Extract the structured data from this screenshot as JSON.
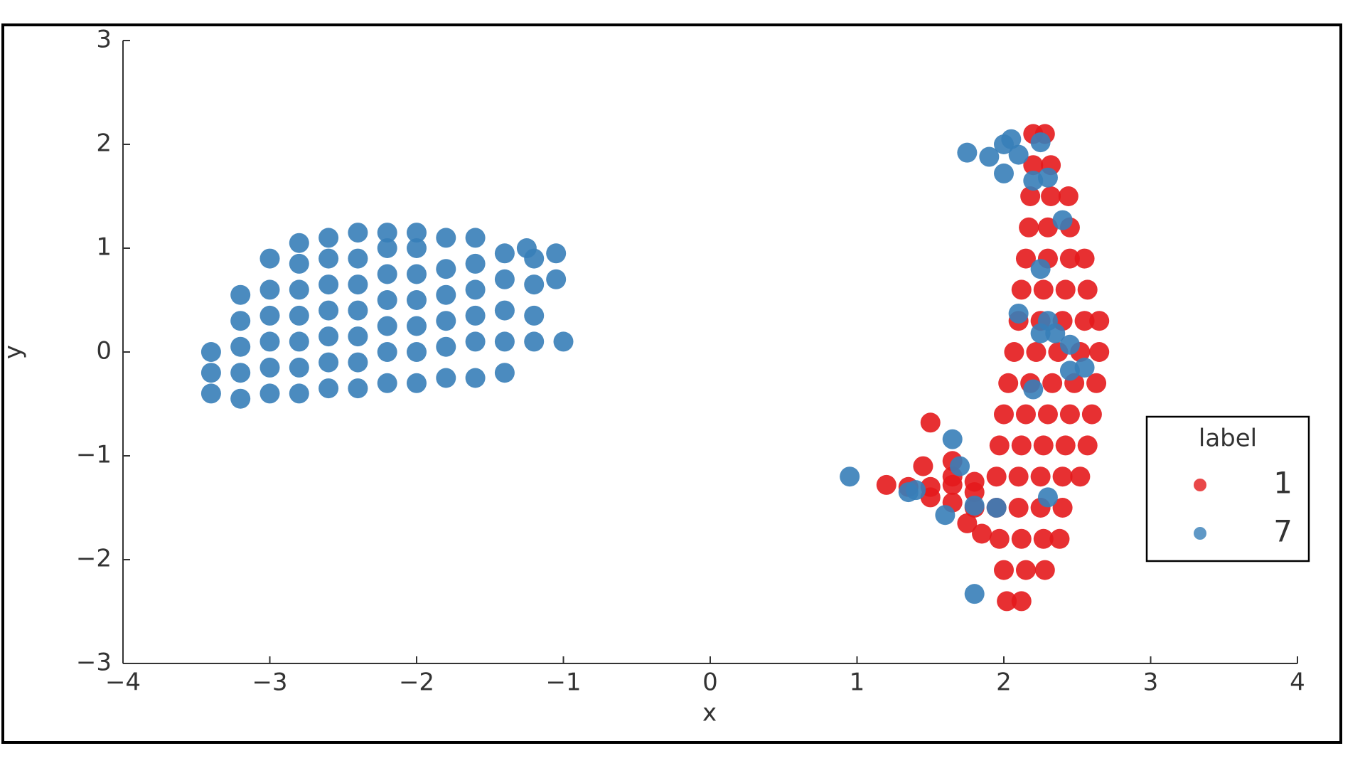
{
  "chart_data": {
    "type": "scatter",
    "xlabel": "x",
    "ylabel": "y",
    "xlim": [
      -4,
      4
    ],
    "ylim": [
      -3,
      3
    ],
    "xticks": [
      {
        "value": -4,
        "label": "−4"
      },
      {
        "value": -3,
        "label": "−3"
      },
      {
        "value": -2,
        "label": "−2"
      },
      {
        "value": -1,
        "label": "−1"
      },
      0,
      1,
      2,
      3,
      4
    ],
    "yticks": [
      {
        "value": -3,
        "label": "−3"
      },
      {
        "value": -2,
        "label": "−2"
      },
      {
        "value": -1,
        "label": "−1"
      },
      0,
      1,
      2,
      3
    ],
    "grid": false,
    "legend": "center right",
    "legend_title": "label",
    "series": [
      {
        "name": "1",
        "color": "#e41a1c",
        "x": [
          2.2,
          2.28,
          2.2,
          2.32,
          2.18,
          2.32,
          2.44,
          2.17,
          2.3,
          2.45,
          2.15,
          2.3,
          2.45,
          2.55,
          2.12,
          2.27,
          2.42,
          2.57,
          2.1,
          2.25,
          2.4,
          2.55,
          2.65,
          2.07,
          2.22,
          2.37,
          2.52,
          2.65,
          2.03,
          2.18,
          2.33,
          2.48,
          2.63,
          2.0,
          2.15,
          2.3,
          2.45,
          2.6,
          1.97,
          2.12,
          2.27,
          2.42,
          2.57,
          1.95,
          2.1,
          2.25,
          2.4,
          2.52,
          1.95,
          2.1,
          2.25,
          2.4,
          1.97,
          2.12,
          2.27,
          2.38,
          2.0,
          2.15,
          2.28,
          2.02,
          2.12,
          1.2,
          1.35,
          1.5,
          1.65,
          1.8,
          1.5,
          1.65,
          1.8,
          1.75,
          1.85,
          1.65,
          1.8,
          1.5,
          1.65,
          1.45
        ],
        "values": [
          2.1,
          2.1,
          1.8,
          1.8,
          1.5,
          1.5,
          1.5,
          1.2,
          1.2,
          1.2,
          0.9,
          0.9,
          0.9,
          0.9,
          0.6,
          0.6,
          0.6,
          0.6,
          0.3,
          0.3,
          0.3,
          0.3,
          0.3,
          0.0,
          0.0,
          0.0,
          0.0,
          0.0,
          -0.3,
          -0.3,
          -0.3,
          -0.3,
          -0.3,
          -0.6,
          -0.6,
          -0.6,
          -0.6,
          -0.6,
          -0.9,
          -0.9,
          -0.9,
          -0.9,
          -0.9,
          -1.2,
          -1.2,
          -1.2,
          -1.2,
          -1.2,
          -1.5,
          -1.5,
          -1.5,
          -1.5,
          -1.8,
          -1.8,
          -1.8,
          -1.8,
          -2.1,
          -2.1,
          -2.1,
          -2.4,
          -2.4,
          -1.28,
          -1.3,
          -1.3,
          -1.28,
          -1.25,
          -1.4,
          -1.45,
          -1.5,
          -1.65,
          -1.75,
          -1.2,
          -1.35,
          -0.68,
          -1.05,
          -1.1
        ]
      },
      {
        "name": "7",
        "color": "#377eb8",
        "x": [
          -3.4,
          -3.4,
          -3.4,
          -3.2,
          -3.2,
          -3.2,
          -3.2,
          -3.2,
          -3.0,
          -3.0,
          -3.0,
          -3.0,
          -3.0,
          -3.0,
          -2.8,
          -2.8,
          -2.8,
          -2.8,
          -2.8,
          -2.8,
          -2.8,
          -2.6,
          -2.6,
          -2.6,
          -2.6,
          -2.6,
          -2.6,
          -2.6,
          -2.4,
          -2.4,
          -2.4,
          -2.4,
          -2.4,
          -2.4,
          -2.4,
          -2.2,
          -2.2,
          -2.2,
          -2.2,
          -2.2,
          -2.2,
          -2.2,
          -2.0,
          -2.0,
          -2.0,
          -2.0,
          -2.0,
          -2.0,
          -2.0,
          -1.8,
          -1.8,
          -1.8,
          -1.8,
          -1.8,
          -1.8,
          -1.6,
          -1.6,
          -1.6,
          -1.6,
          -1.6,
          -1.6,
          -1.4,
          -1.4,
          -1.4,
          -1.4,
          -1.4,
          -1.2,
          -1.2,
          -1.2,
          -1.2,
          -1.25,
          -1.05,
          -1.0,
          -1.05,
          2.0,
          2.05,
          1.75,
          1.9,
          2.1,
          2.0,
          2.2,
          2.25,
          2.3,
          2.4,
          2.25,
          2.1,
          2.3,
          2.25,
          2.35,
          2.45,
          2.45,
          2.55,
          2.2,
          1.65,
          1.7,
          0.95,
          1.35,
          1.4,
          1.8,
          1.95,
          1.6,
          2.3,
          1.8
        ],
        "values": [
          -0.4,
          -0.2,
          0.0,
          -0.45,
          -0.2,
          0.05,
          0.3,
          0.55,
          -0.4,
          -0.15,
          0.1,
          0.35,
          0.6,
          0.9,
          -0.4,
          -0.15,
          0.1,
          0.35,
          0.6,
          0.85,
          1.05,
          -0.35,
          -0.1,
          0.15,
          0.4,
          0.65,
          0.9,
          1.1,
          -0.35,
          -0.1,
          0.15,
          0.4,
          0.65,
          0.9,
          1.15,
          -0.3,
          0.0,
          0.25,
          0.5,
          0.75,
          1.0,
          1.15,
          -0.3,
          0.0,
          0.25,
          0.5,
          0.75,
          1.0,
          1.15,
          -0.25,
          0.05,
          0.3,
          0.55,
          0.8,
          1.1,
          -0.25,
          0.1,
          0.35,
          0.6,
          0.85,
          1.1,
          -0.2,
          0.1,
          0.4,
          0.7,
          0.95,
          0.1,
          0.35,
          0.65,
          0.9,
          1.0,
          0.95,
          0.1,
          0.7,
          2.0,
          2.05,
          1.92,
          1.88,
          1.9,
          1.72,
          1.65,
          2.02,
          1.68,
          1.27,
          0.8,
          0.37,
          0.3,
          0.18,
          0.18,
          0.07,
          -0.18,
          -0.15,
          -0.36,
          -0.84,
          -1.1,
          -1.2,
          -1.35,
          -1.33,
          -1.48,
          -1.5,
          -1.57,
          -1.4,
          -2.33
        ]
      }
    ]
  }
}
